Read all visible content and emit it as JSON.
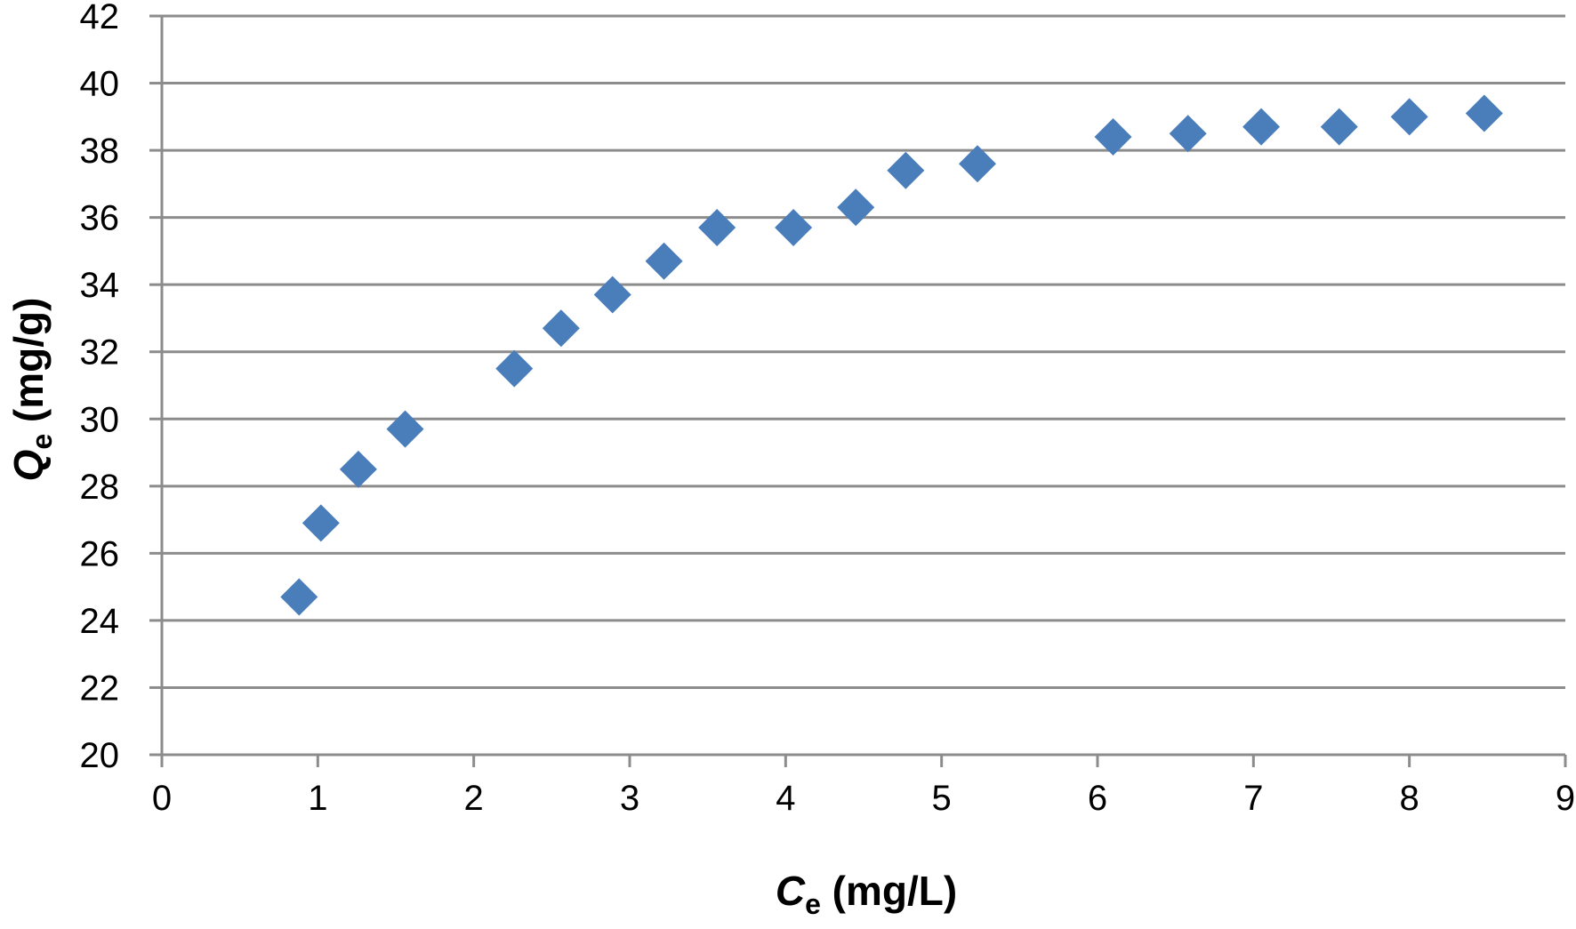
{
  "chart_data": {
    "type": "scatter",
    "title": "",
    "xlabel": {
      "symbol": "C",
      "subscript": "e",
      "unit": " (mg/L)"
    },
    "ylabel": {
      "symbol": "Q",
      "subscript": "e",
      "unit": " (mg/g)"
    },
    "xlim": [
      0,
      9
    ],
    "ylim": [
      20,
      42
    ],
    "x_ticks": [
      "0",
      "1",
      "2",
      "3",
      "4",
      "5",
      "6",
      "7",
      "8",
      "9"
    ],
    "y_ticks": [
      "20",
      "22",
      "24",
      "26",
      "28",
      "30",
      "32",
      "34",
      "36",
      "38",
      "40",
      "42"
    ],
    "grid": "horizontal",
    "legend": "none",
    "marker": "diamond",
    "series": [
      {
        "color": "#4a7ebb",
        "points": [
          {
            "x": 0.88,
            "y": 24.7
          },
          {
            "x": 1.02,
            "y": 26.9
          },
          {
            "x": 1.26,
            "y": 28.5
          },
          {
            "x": 1.56,
            "y": 29.7
          },
          {
            "x": 2.26,
            "y": 31.5
          },
          {
            "x": 2.56,
            "y": 32.7
          },
          {
            "x": 2.89,
            "y": 33.7
          },
          {
            "x": 3.22,
            "y": 34.7
          },
          {
            "x": 3.56,
            "y": 35.7
          },
          {
            "x": 4.05,
            "y": 35.7
          },
          {
            "x": 4.45,
            "y": 36.3
          },
          {
            "x": 4.77,
            "y": 37.4
          },
          {
            "x": 5.23,
            "y": 37.6
          },
          {
            "x": 6.1,
            "y": 38.4
          },
          {
            "x": 6.58,
            "y": 38.5
          },
          {
            "x": 7.05,
            "y": 38.7
          },
          {
            "x": 7.55,
            "y": 38.7
          },
          {
            "x": 8.0,
            "y": 39.0
          },
          {
            "x": 8.48,
            "y": 39.1
          }
        ]
      }
    ],
    "colors": {
      "gridline": "#8c8c8c",
      "axis": "#8c8c8c",
      "marker": "#4a7ebb"
    }
  }
}
